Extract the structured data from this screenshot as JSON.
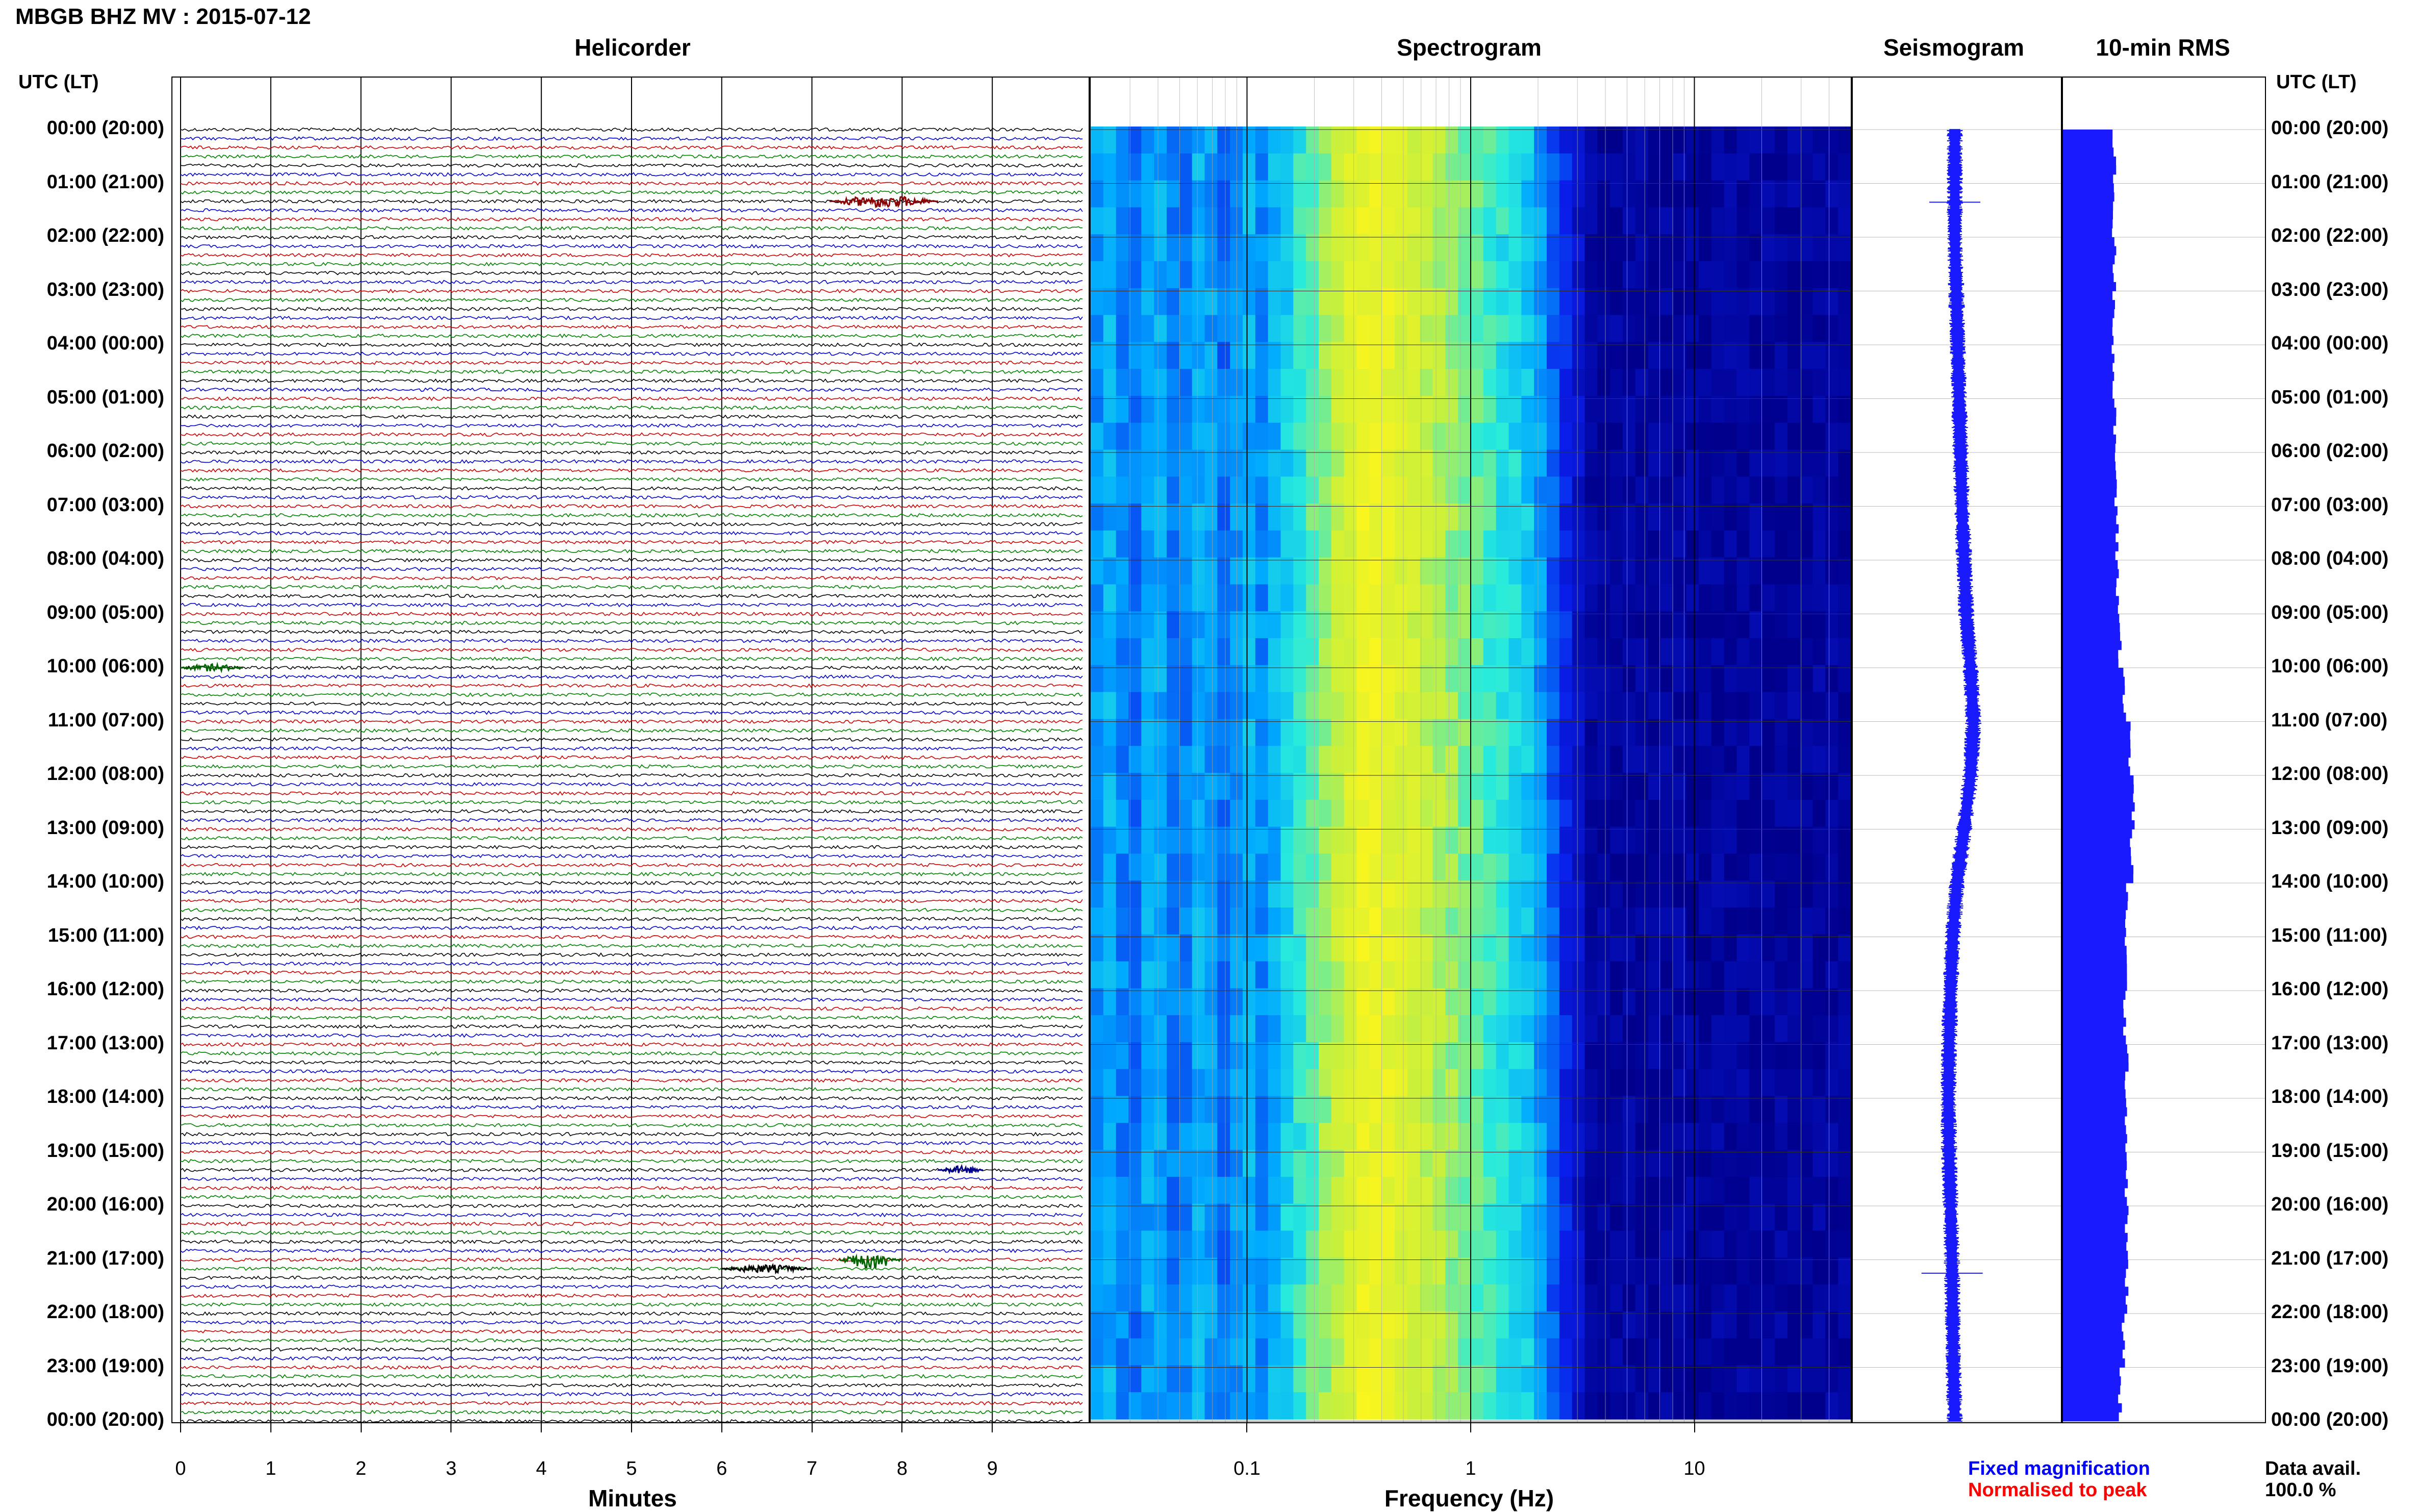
{
  "title": "MBGB BHZ MV : 2015-07-12",
  "panels": {
    "helicorder": "Helicorder",
    "spectrogram": "Spectrogram",
    "seismogram": "Seismogram",
    "rms": "10-min RMS"
  },
  "time_header_left": "UTC (LT)",
  "time_header_right": "UTC (LT)",
  "time_labels": [
    "00:00 (20:00)",
    "01:00 (21:00)",
    "02:00 (22:00)",
    "03:00 (23:00)",
    "04:00 (00:00)",
    "05:00 (01:00)",
    "06:00 (02:00)",
    "07:00 (03:00)",
    "08:00 (04:00)",
    "09:00 (05:00)",
    "10:00 (06:00)",
    "11:00 (07:00)",
    "12:00 (08:00)",
    "13:00 (09:00)",
    "14:00 (10:00)",
    "15:00 (11:00)",
    "16:00 (12:00)",
    "17:00 (13:00)",
    "18:00 (14:00)",
    "19:00 (15:00)",
    "20:00 (16:00)",
    "21:00 (17:00)",
    "22:00 (18:00)",
    "23:00 (19:00)",
    "00:00 (20:00)"
  ],
  "legend": {
    "fixed": "Fixed magnification",
    "fixed_color": "#0000ff",
    "normalised": "Normalised to peak",
    "normalised_color": "#ff0000"
  },
  "data_avail": {
    "label": "Data avail.",
    "value": "100.0 %"
  },
  "trace_colors": [
    "#000000",
    "#0000cc",
    "#cc0000",
    "#008000"
  ],
  "chart_data": [
    {
      "type": "line",
      "title": "Helicorder",
      "xlabel": "Minutes",
      "x_ticks": [
        "0",
        "1",
        "2",
        "3",
        "4",
        "5",
        "6",
        "7",
        "8",
        "9"
      ],
      "xlim": [
        0,
        10
      ],
      "rows_per_hour": 6,
      "notable_events_utc": [
        "01:20 (~7.2-8.2 min)",
        "10:00 (~0 min)",
        "19:20 (~8.5 min)",
        "21:00 (~7-8 min)",
        "21:00 (~6-7 min)"
      ]
    },
    {
      "type": "heatmap",
      "title": "Spectrogram",
      "xlabel": "Frequency (Hz)",
      "x_ticks": [
        "0.1",
        "1",
        "10"
      ],
      "x_scale": "log",
      "xlim": [
        0.02,
        50
      ],
      "peak_band_hz": [
        0.2,
        0.6
      ]
    },
    {
      "type": "line",
      "title": "Seismogram",
      "drift_series": [
        0,
        0,
        0,
        0.2,
        0.4,
        0.6,
        0.8,
        1,
        1.3,
        1.6,
        2.2,
        2.6,
        2.2,
        1.3,
        0.3,
        -0.3,
        -0.6,
        -0.8,
        -0.9,
        -0.8,
        -0.6,
        -0.4,
        -0.3,
        -0.2,
        0
      ],
      "spikes_utc": [
        "01:30",
        "21:15"
      ]
    },
    {
      "type": "bar",
      "title": "10-min RMS",
      "orientation": "horizontal",
      "hours_utc": [
        "00:00",
        "01:00",
        "02:00",
        "03:00",
        "04:00",
        "05:00",
        "06:00",
        "07:00",
        "08:00",
        "09:00",
        "10:00",
        "11:00",
        "12:00",
        "13:00",
        "14:00",
        "15:00",
        "16:00",
        "17:00",
        "18:00",
        "19:00",
        "20:00",
        "21:00",
        "22:00",
        "23:00"
      ],
      "values": [
        0.63,
        0.62,
        0.63,
        0.63,
        0.62,
        0.63,
        0.65,
        0.66,
        0.67,
        0.7,
        0.75,
        0.82,
        0.86,
        0.84,
        0.78,
        0.77,
        0.76,
        0.78,
        0.78,
        0.78,
        0.78,
        0.78,
        0.74,
        0.7
      ],
      "color": "#1a1aff"
    }
  ]
}
